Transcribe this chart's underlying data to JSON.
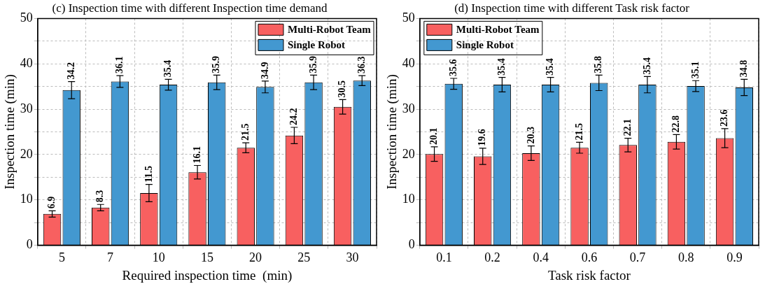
{
  "chart_data": [
    {
      "type": "bar",
      "title": "(c) Inspection time with different Inspection time demand",
      "xlabel": "Required inspection time  (min)",
      "ylabel": "Inspection time (min)",
      "categories": [
        "5",
        "7",
        "10",
        "15",
        "20",
        "25",
        "30"
      ],
      "series": [
        {
          "name": "Multi-Robot Team",
          "color": "#f86060",
          "values": [
            6.9,
            8.3,
            11.5,
            16.1,
            21.5,
            24.2,
            30.5
          ],
          "errors": [
            0.7,
            0.7,
            1.9,
            1.5,
            1.1,
            1.8,
            1.6
          ]
        },
        {
          "name": "Single Robot",
          "color": "#4398d0",
          "values": [
            34.2,
            36.1,
            35.4,
            35.9,
            34.9,
            35.9,
            36.3
          ],
          "errors": [
            1.9,
            1.3,
            1.2,
            1.6,
            1.3,
            1.6,
            1.1
          ]
        }
      ],
      "ylim": [
        0,
        50
      ],
      "yticks": [
        0,
        {
          "value": 5,
          "label": null
        },
        10,
        {
          "value": 15,
          "label": null
        },
        20,
        {
          "value": 25,
          "label": null
        },
        30,
        {
          "value": 35,
          "label": null
        },
        40,
        {
          "value": 45,
          "label": null
        },
        50
      ],
      "grid": true,
      "legend": "top right",
      "data_labels": true
    },
    {
      "type": "bar",
      "title": "(d) Inspection time with different Task risk factor",
      "xlabel": "Task risk factor",
      "ylabel": "Inspection time (min)",
      "categories": [
        "0.1",
        "0.2",
        "0.4",
        "0.6",
        "0.7",
        "0.8",
        "0.9"
      ],
      "series": [
        {
          "name": "Multi-Robot Team",
          "color": "#f86060",
          "values": [
            20.1,
            19.6,
            20.3,
            21.5,
            22.1,
            22.8,
            23.6
          ],
          "errors": [
            1.6,
            1.8,
            1.6,
            1.2,
            1.5,
            1.6,
            2.1
          ]
        },
        {
          "name": "Single Robot",
          "color": "#4398d0",
          "values": [
            35.6,
            35.4,
            35.4,
            35.8,
            35.4,
            35.1,
            34.8
          ],
          "errors": [
            1.2,
            1.6,
            1.6,
            1.7,
            1.8,
            1.2,
            1.8
          ]
        }
      ],
      "ylim": [
        0,
        50
      ],
      "yticks": [
        0,
        {
          "value": 5,
          "label": null
        },
        10,
        {
          "value": 15,
          "label": null
        },
        20,
        {
          "value": 25,
          "label": null
        },
        30,
        {
          "value": 35,
          "label": null
        },
        40,
        {
          "value": 45,
          "label": null
        },
        50
      ],
      "grid": true,
      "legend": "top left",
      "data_labels": true
    }
  ]
}
